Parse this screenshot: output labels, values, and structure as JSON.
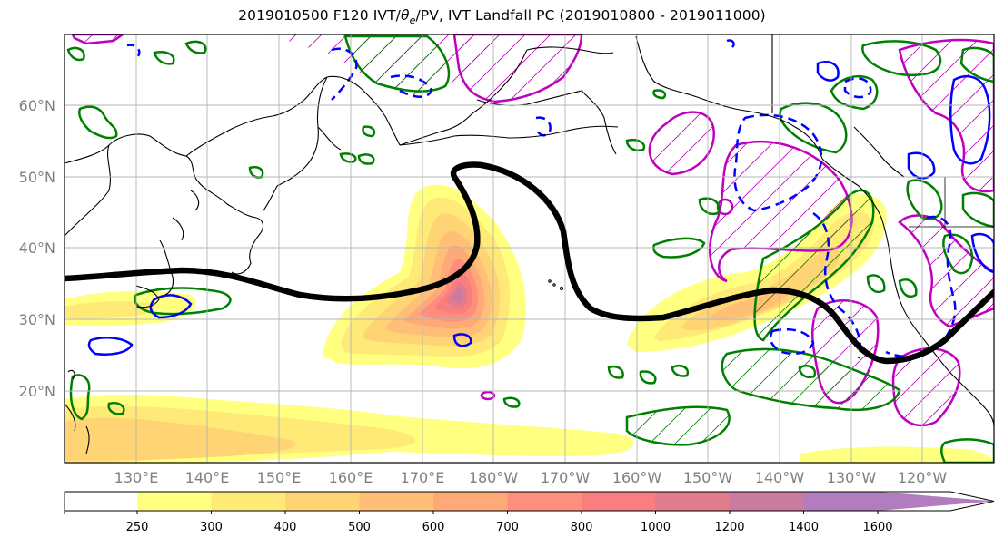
{
  "title_prefix": "2019010500 F120 IVT/",
  "title_theta": "θ",
  "title_sub": "e",
  "title_suffix": "/PV, IVT Landfall PC (2019010800 - 2019011000)",
  "map": {
    "lat_labels": [
      "60°N",
      "50°N",
      "40°N",
      "30°N",
      "20°N"
    ],
    "lon_labels": [
      "130°E",
      "140°E",
      "150°E",
      "160°E",
      "170°E",
      "180°W",
      "170°W",
      "160°W",
      "150°W",
      "140°W",
      "130°W",
      "120°W"
    ]
  },
  "colorbar": {
    "ticks": [
      "250",
      "300",
      "400",
      "500",
      "600",
      "700",
      "800",
      "1000",
      "1200",
      "1400",
      "1600"
    ],
    "colors": [
      "#ffff80",
      "#ffe977",
      "#ffd474",
      "#ffbf76",
      "#ffa979",
      "#ff8e7c",
      "#f87e80",
      "#e27b8c",
      "#cc7ba0",
      "#b27dbf"
    ]
  },
  "contour_colors": {
    "ivt": "#ff8a80",
    "pv_green": "#008000",
    "theta_blue": "#0000ff",
    "magenta": "#c000c0",
    "pc_black": "#000000"
  }
}
